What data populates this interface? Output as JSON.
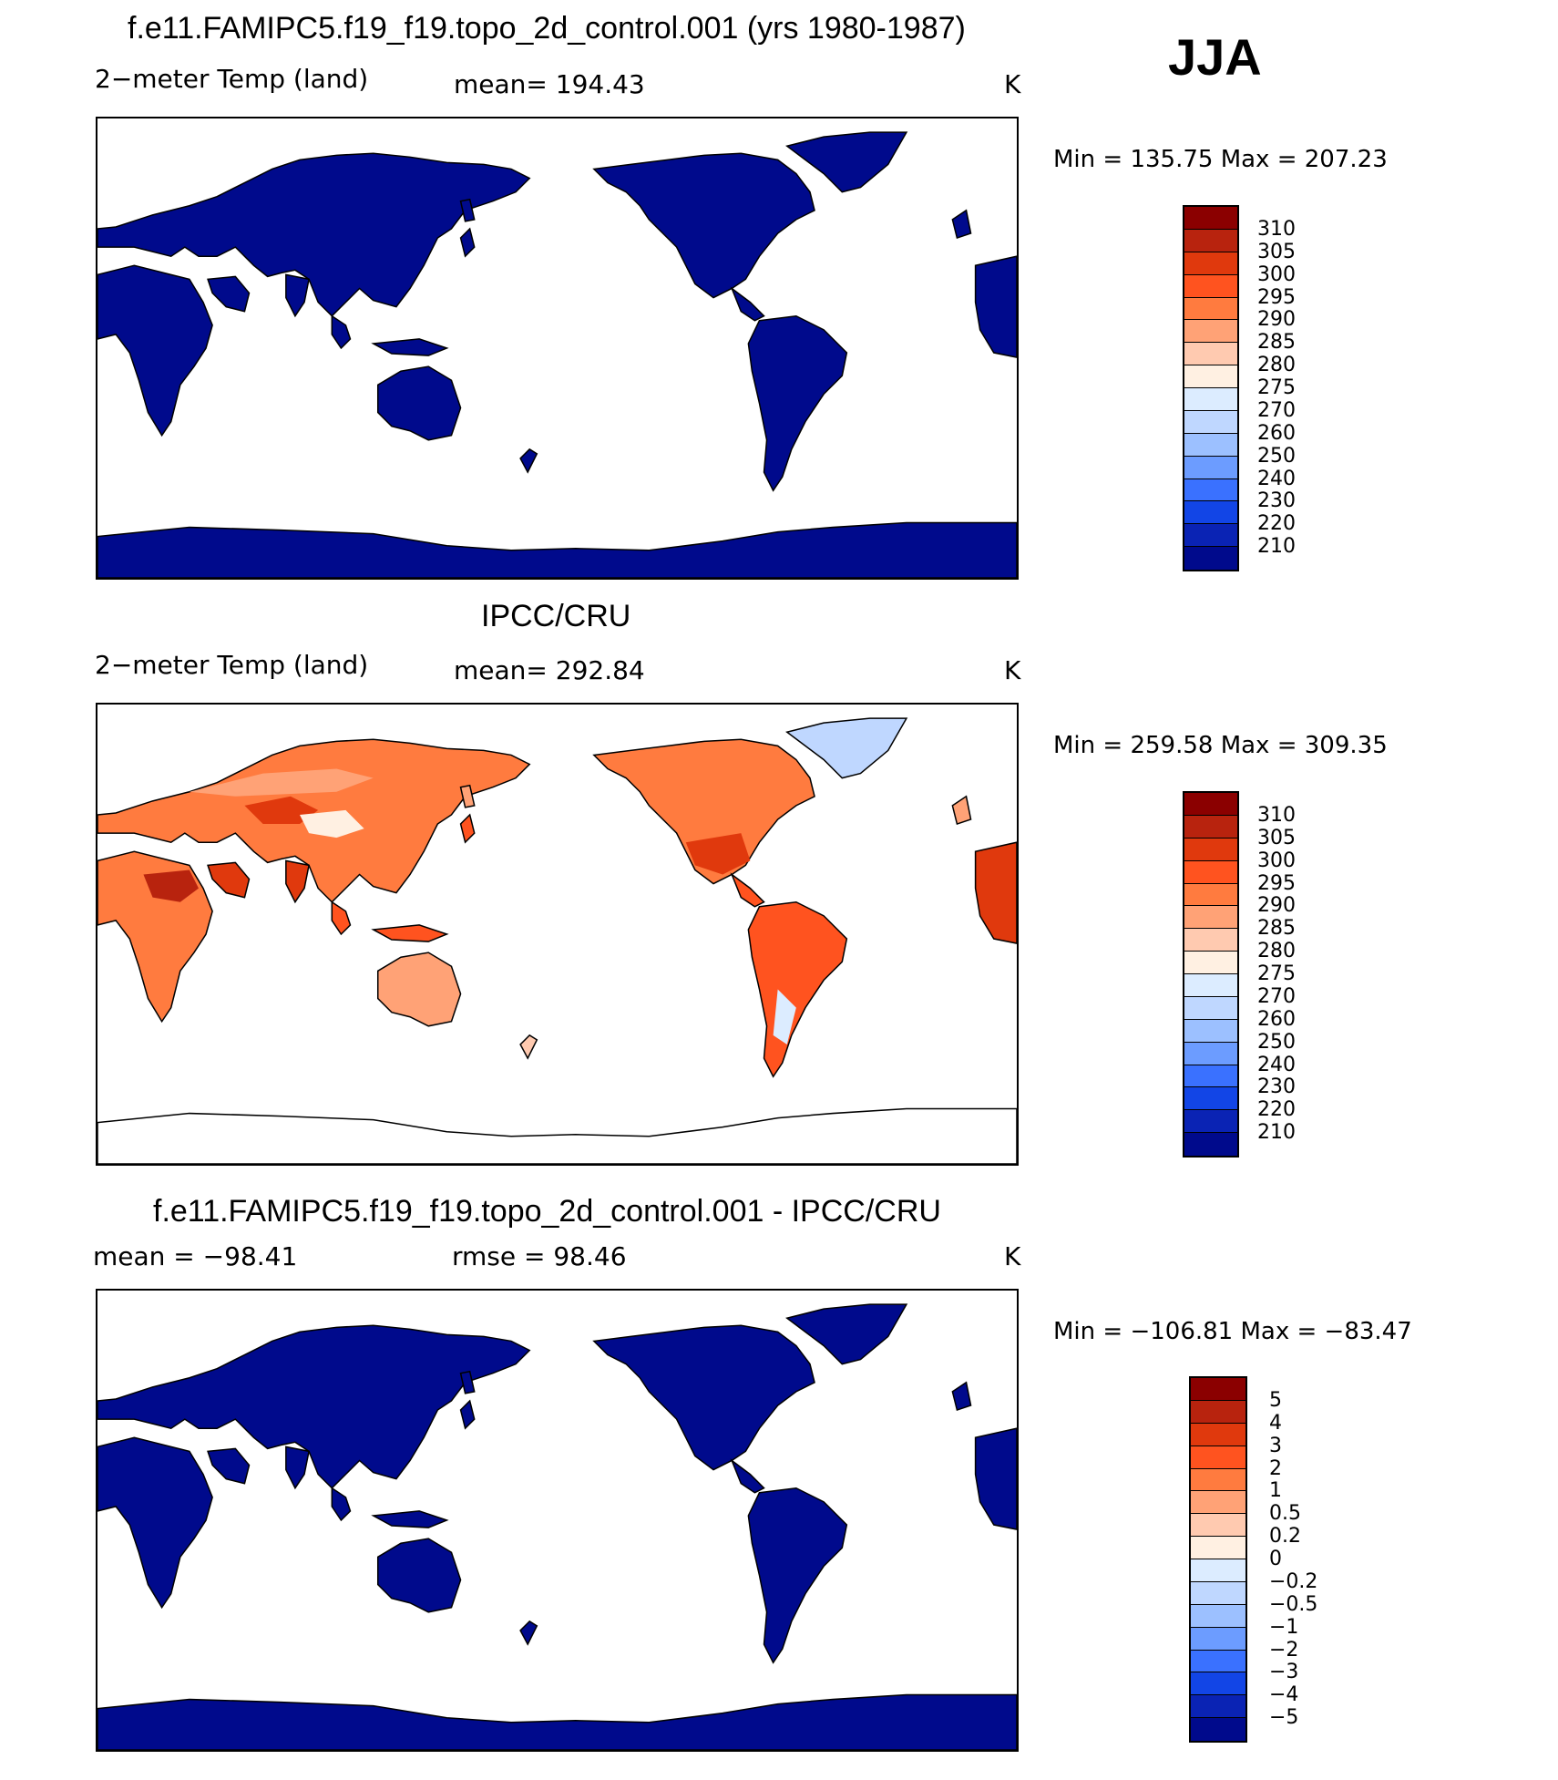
{
  "season": "JJA",
  "panels": [
    {
      "title": "f.e11.FAMIPC5.f19_f19.topo_2d_control.001 (yrs 1980-1987)",
      "left_label": "2−meter Temp  (land)",
      "center_label": "mean=  194.43",
      "units": "K",
      "minmax": "Min  =  135.75  Max  =  207.23",
      "fill": "dark-blue",
      "colorbar_ticks": [
        "310",
        "305",
        "300",
        "295",
        "290",
        "285",
        "280",
        "275",
        "270",
        "260",
        "250",
        "240",
        "230",
        "220",
        "210"
      ]
    },
    {
      "title": "IPCC/CRU",
      "left_label": "2−meter Temp  (land)",
      "center_label": "mean=  292.84",
      "units": "K",
      "minmax": "Min  =  259.58  Max  =  309.35",
      "fill": "observed-temperature",
      "colorbar_ticks": [
        "310",
        "305",
        "300",
        "295",
        "290",
        "285",
        "280",
        "275",
        "270",
        "260",
        "250",
        "240",
        "230",
        "220",
        "210"
      ]
    },
    {
      "title": "f.e11.FAMIPC5.f19_f19.topo_2d_control.001 - IPCC/CRU",
      "left_label": "mean  =  −98.41",
      "center_label": "rmse  =   98.46",
      "units": "K",
      "minmax": "Min  =  −106.81  Max  =  −83.47",
      "fill": "dark-blue",
      "colorbar_ticks": [
        "5",
        "4",
        "3",
        "2",
        "1",
        "0.5",
        "0.2",
        "0",
        "−0.2",
        "−0.5",
        "−1",
        "−2",
        "−3",
        "−4",
        "−5"
      ]
    }
  ],
  "colors": {
    "palette": [
      "#8b0000",
      "#b8230e",
      "#e0390d",
      "#ff531f",
      "#ff7b3f",
      "#ffa276",
      "#ffcab0",
      "#fff0e2",
      "#dcecff",
      "#bfd7ff",
      "#9cc0ff",
      "#6c9cff",
      "#3a71ff",
      "#1245e6",
      "#0a23b4",
      "#000a8c"
    ],
    "model_land": "#000a8c",
    "coast": "#000000"
  }
}
